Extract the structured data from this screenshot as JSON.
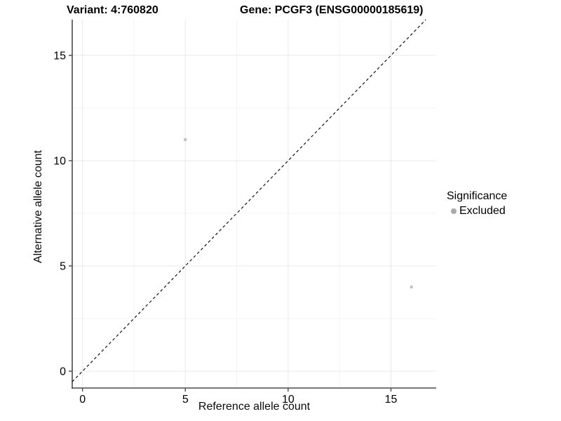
{
  "chart_data": {
    "type": "scatter",
    "title_left": "Variant: 4:760820",
    "title_right": "Gene: PCGF3 (ENSG00000185619)",
    "xlabel": "Reference allele count",
    "ylabel": "Alternative allele count",
    "x_ticks": [
      0,
      5,
      10,
      15
    ],
    "y_ticks": [
      0,
      5,
      10,
      15
    ],
    "x_minor": [
      2.5,
      7.5,
      12.5
    ],
    "y_minor": [
      2.5,
      7.5,
      12.5
    ],
    "xlim": [
      -0.5,
      17.2
    ],
    "ylim": [
      -0.8,
      16.7
    ],
    "grid": "major+minor",
    "points": [
      {
        "x": 5,
        "y": 11,
        "significance": "Excluded"
      },
      {
        "x": 16,
        "y": 4,
        "significance": "Excluded"
      }
    ],
    "reference_line": {
      "style": "dashed",
      "equation": "y = x",
      "color": "#111111"
    },
    "legend": {
      "title": "Significance",
      "position": "right",
      "items": [
        {
          "label": "Excluded",
          "color": "#b5b5b5"
        }
      ]
    }
  },
  "colors": {
    "background": "#ffffff",
    "axis": "#4a4a4a",
    "grid_major": "#e8e8e8",
    "grid_minor": "#f3f3f3",
    "point": "#c2c2c2",
    "legend_dot": "#a9a9a9",
    "text": "#000000"
  }
}
